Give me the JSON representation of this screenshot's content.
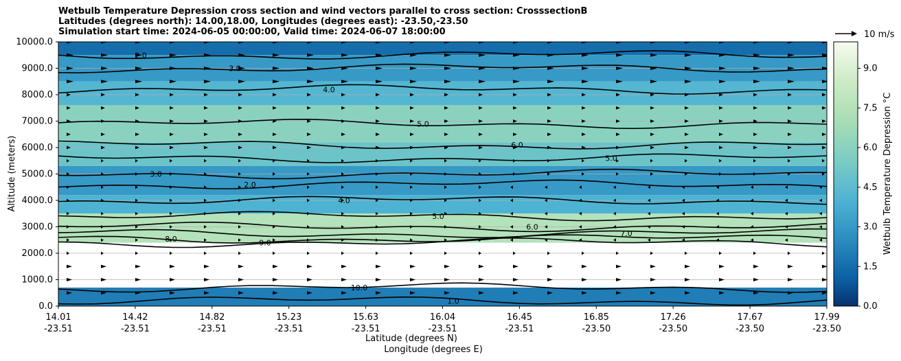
{
  "title": {
    "line1": "Wetbulb Temperature Depression cross section and wind vectors parallel to cross section: CrosssectionB",
    "line2": "Latitudes (degrees north): 14.00,18.00, Longitudes (degrees east): -23.50,-23.50",
    "line3": "Simulation start time: 2024-06-05 00:00:00, Valid time: 2024-06-07 18:00:00"
  },
  "quiver_key": "10 m/s",
  "chart_data": {
    "type": "heatmap",
    "title": "Wetbulb Temperature Depression cross section and wind vectors parallel to cross section: CrosssectionB",
    "ylabel": "Altitude (meters)",
    "xlabel_lat": "Latitude (degrees N)",
    "xlabel_lon": "Longitude (degrees E)",
    "ylim": [
      0,
      10000
    ],
    "y_ticks": [
      "0.0",
      "1000.0",
      "2000.0",
      "3000.0",
      "4000.0",
      "5000.0",
      "6000.0",
      "7000.0",
      "8000.0",
      "9000.0",
      "10000.0"
    ],
    "x_ticks": [
      {
        "lat": "14.01",
        "lon": "-23.51"
      },
      {
        "lat": "14.42",
        "lon": "-23.51"
      },
      {
        "lat": "14.82",
        "lon": "-23.51"
      },
      {
        "lat": "15.23",
        "lon": "-23.51"
      },
      {
        "lat": "15.63",
        "lon": "-23.51"
      },
      {
        "lat": "16.04",
        "lon": "-23.51"
      },
      {
        "lat": "16.45",
        "lon": "-23.51"
      },
      {
        "lat": "16.85",
        "lon": "-23.50"
      },
      {
        "lat": "17.26",
        "lon": "-23.50"
      },
      {
        "lat": "17.67",
        "lon": "-23.50"
      },
      {
        "lat": "17.99",
        "lon": "-23.50"
      }
    ],
    "colorbar": {
      "label": "Wetbulb Temperature Depression °C",
      "ticks": [
        "0.0",
        "1.5",
        "3.0",
        "4.5",
        "6.0",
        "7.5",
        "9.0"
      ],
      "range": [
        0,
        10
      ]
    },
    "grid": "horizontal",
    "bands": [
      {
        "alt_from": 9500,
        "alt_to": 10000,
        "value": 1.5
      },
      {
        "alt_from": 8500,
        "alt_to": 9500,
        "value": 3.0
      },
      {
        "alt_from": 7600,
        "alt_to": 8500,
        "value": 4.2
      },
      {
        "alt_from": 6200,
        "alt_to": 7600,
        "value": 6.0
      },
      {
        "alt_from": 5300,
        "alt_to": 6200,
        "value": 5.0
      },
      {
        "alt_from": 4200,
        "alt_to": 5300,
        "value": 3.0
      },
      {
        "alt_from": 3500,
        "alt_to": 4200,
        "value": 4.0
      },
      {
        "alt_from": 2400,
        "alt_to": 3500,
        "value": 7.5
      },
      {
        "alt_from": 700,
        "alt_to": 2400,
        "value": null
      },
      {
        "alt_from": 0,
        "alt_to": 700,
        "value": 2.0
      }
    ],
    "contours": [
      {
        "label": "2.0",
        "alt": 9500
      },
      {
        "label": "3.0",
        "alt": 9000
      },
      {
        "label": "4.0",
        "alt": 8200
      },
      {
        "label": "5.0",
        "alt": 6900
      },
      {
        "label": "6.0",
        "alt": 6100
      },
      {
        "label": "5.0",
        "alt": 5600
      },
      {
        "label": "3.0",
        "alt": 5000
      },
      {
        "label": "2.0",
        "alt": 4600
      },
      {
        "label": "4.0",
        "alt": 4000
      },
      {
        "label": "5.0",
        "alt": 3400
      },
      {
        "label": "6.0",
        "alt": 3000
      },
      {
        "label": "7.0",
        "alt": 2750
      },
      {
        "label": "8.0",
        "alt": 2550
      },
      {
        "label": "9.0",
        "alt": 2400
      },
      {
        "label": "10.0",
        "alt": 700
      },
      {
        "label": "1.0",
        "alt": 200
      }
    ]
  }
}
